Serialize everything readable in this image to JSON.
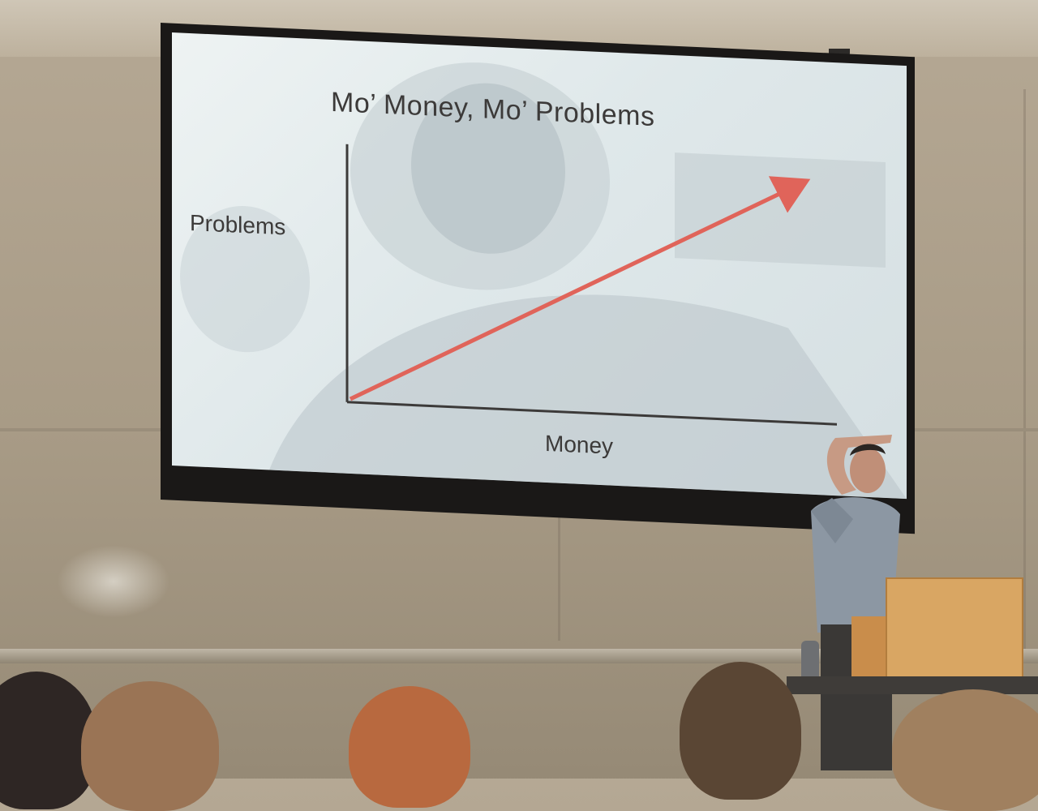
{
  "slide": {
    "title": "Mo’ Money, Mo’ Problems",
    "y_axis_label": "Problems",
    "x_axis_label": "Money",
    "arrow_color": "#e0645a",
    "axis_color": "#3c3a39"
  },
  "scene": {
    "setting": "lecture-hall",
    "wall_color": "#aa9d88",
    "screen_casing_color": "#1a1817",
    "podium_color": "#d9a663"
  }
}
